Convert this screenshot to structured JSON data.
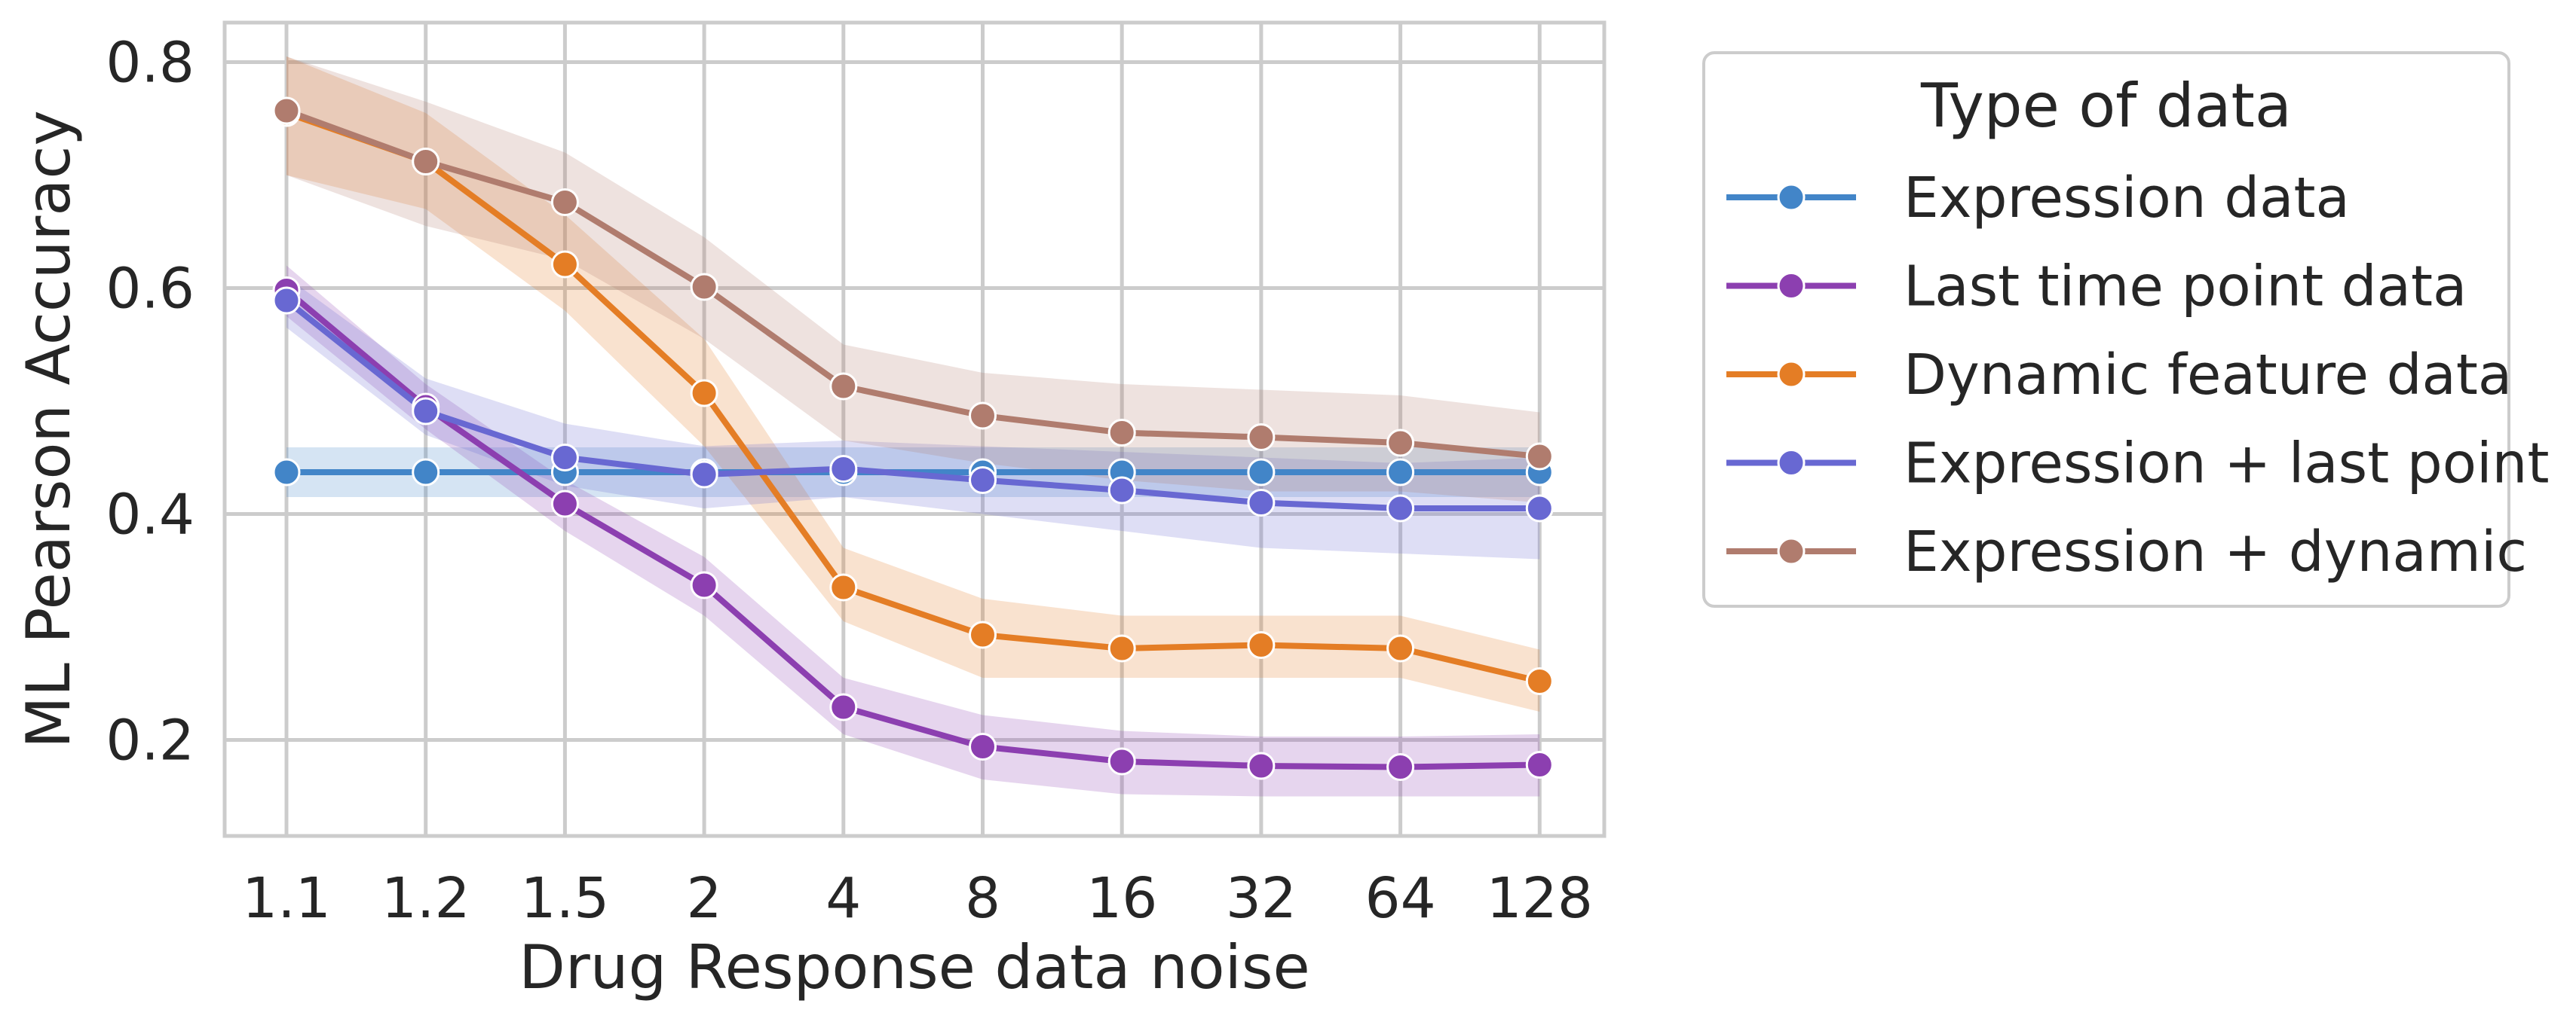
{
  "chart_data": {
    "type": "line",
    "xlabel": "Drug Response data noise",
    "ylabel": "ML Pearson Accuracy",
    "categories": [
      "1.1",
      "1.2",
      "1.5",
      "2",
      "4",
      "8",
      "16",
      "32",
      "64",
      "128"
    ],
    "ylim": [
      0.115,
      0.835
    ],
    "yticks": [
      0.2,
      0.4,
      0.6,
      0.8
    ],
    "ytick_labels": [
      "0.2",
      "0.4",
      "0.6",
      "0.8"
    ],
    "grid": true,
    "legend_title": "Type of data",
    "legend_position": "outside right, top",
    "series": [
      {
        "name": "Expression data",
        "color": "#4285c8",
        "values": [
          0.437,
          0.437,
          0.437,
          0.437,
          0.437,
          0.437,
          0.437,
          0.437,
          0.437,
          0.437
        ],
        "lower": [
          0.415,
          0.415,
          0.415,
          0.415,
          0.415,
          0.415,
          0.415,
          0.415,
          0.415,
          0.415
        ],
        "upper": [
          0.459,
          0.459,
          0.459,
          0.459,
          0.459,
          0.459,
          0.459,
          0.459,
          0.459,
          0.459
        ]
      },
      {
        "name": "Last time point data",
        "color": "#8c3fb0",
        "values": [
          0.598,
          0.495,
          0.409,
          0.337,
          0.229,
          0.194,
          0.181,
          0.177,
          0.176,
          0.178
        ],
        "lower": [
          0.575,
          0.475,
          0.385,
          0.31,
          0.205,
          0.165,
          0.152,
          0.15,
          0.15,
          0.15
        ],
        "upper": [
          0.62,
          0.515,
          0.43,
          0.362,
          0.255,
          0.222,
          0.208,
          0.203,
          0.203,
          0.205
        ]
      },
      {
        "name": "Dynamic feature data",
        "color": "#e47d25",
        "values": [
          0.755,
          0.712,
          0.621,
          0.507,
          0.335,
          0.293,
          0.281,
          0.284,
          0.281,
          0.252
        ],
        "lower": [
          0.7,
          0.67,
          0.58,
          0.46,
          0.305,
          0.255,
          0.255,
          0.255,
          0.255,
          0.225
        ],
        "upper": [
          0.805,
          0.755,
          0.665,
          0.555,
          0.37,
          0.325,
          0.31,
          0.31,
          0.31,
          0.28
        ]
      },
      {
        "name": "Expression + last point",
        "color": "#6868d2",
        "values": [
          0.589,
          0.491,
          0.45,
          0.435,
          0.44,
          0.43,
          0.421,
          0.41,
          0.405,
          0.405
        ],
        "lower": [
          0.565,
          0.47,
          0.425,
          0.405,
          0.415,
          0.4,
          0.385,
          0.37,
          0.365,
          0.36
        ],
        "upper": [
          0.61,
          0.52,
          0.48,
          0.46,
          0.465,
          0.46,
          0.455,
          0.45,
          0.445,
          0.45
        ]
      },
      {
        "name": "Expression + dynamic",
        "color": "#b07c6e",
        "values": [
          0.757,
          0.712,
          0.676,
          0.601,
          0.513,
          0.487,
          0.472,
          0.468,
          0.463,
          0.451
        ],
        "lower": [
          0.7,
          0.655,
          0.625,
          0.555,
          0.465,
          0.445,
          0.43,
          0.42,
          0.42,
          0.41
        ],
        "upper": [
          0.805,
          0.765,
          0.72,
          0.645,
          0.55,
          0.525,
          0.515,
          0.51,
          0.505,
          0.49
        ]
      }
    ]
  }
}
